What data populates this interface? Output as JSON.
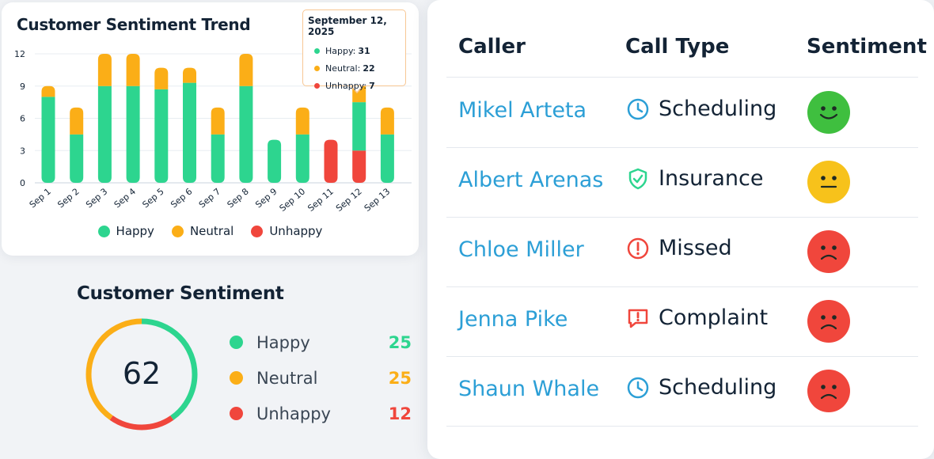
{
  "chart_data": [
    {
      "type": "bar",
      "stacked": true,
      "title": "Customer Sentiment Trend",
      "categories": [
        "Sep 1",
        "Sep 2",
        "Sep 3",
        "Sep 4",
        "Sep 5",
        "Sep 6",
        "Sep 7",
        "Sep 8",
        "Sep 9",
        "Sep 10",
        "Sep 11",
        "Sep 12",
        "Sep 13"
      ],
      "series": [
        {
          "name": "Unhappy",
          "color": "#f0463c",
          "values": [
            0,
            0,
            0,
            0,
            0,
            0,
            0,
            0,
            0,
            0,
            4,
            3,
            0
          ]
        },
        {
          "name": "Happy",
          "color": "#2dd58f",
          "values": [
            8,
            4.5,
            9,
            9,
            8.7,
            9.3,
            4.5,
            9,
            4,
            4.5,
            0,
            4.5,
            4.5
          ]
        },
        {
          "name": "Neutral",
          "color": "#fbae17",
          "values": [
            1,
            2.5,
            3,
            3,
            2,
            1.4,
            2.5,
            3,
            0,
            2.5,
            0,
            4.5,
            2.5
          ]
        }
      ],
      "yticks": [
        0,
        3,
        6,
        9,
        12
      ],
      "ylim": [
        0,
        12
      ],
      "grid": true,
      "legend": "bottom",
      "tooltip": {
        "date": "September 12, 2025",
        "rows": [
          {
            "label": "Happy:",
            "value": "31",
            "color": "#2dd58f"
          },
          {
            "label": "Neutral:",
            "value": "22",
            "color": "#fbae17"
          },
          {
            "label": "Unhappy:",
            "value": "7",
            "color": "#f0463c"
          }
        ]
      }
    },
    {
      "type": "pie",
      "title": "Customer Sentiment",
      "total": "62",
      "labels": [
        "Happy",
        "Neutral",
        "Unhappy"
      ],
      "values": [
        25,
        25,
        12
      ],
      "colors": [
        "#2dd58f",
        "#fbae17",
        "#f0463c"
      ]
    }
  ],
  "legend_items": [
    {
      "label": "Happy",
      "color": "#2dd58f"
    },
    {
      "label": "Neutral",
      "color": "#fbae17"
    },
    {
      "label": "Unhappy",
      "color": "#f0463c"
    }
  ],
  "table": {
    "headers": [
      "Caller",
      "Call Type",
      "Sentiment"
    ],
    "rows": [
      {
        "caller": "Mikel Arteta",
        "type": "Scheduling",
        "icon": "clock-icon",
        "sentiment": "happy"
      },
      {
        "caller": "Albert Arenas",
        "type": "Insurance",
        "icon": "shield-check-icon",
        "sentiment": "neutral"
      },
      {
        "caller": "Chloe Miller",
        "type": "Missed",
        "icon": "alert-circle-icon",
        "sentiment": "unhappy"
      },
      {
        "caller": "Jenna Pike",
        "type": "Complaint",
        "icon": "message-alert-icon",
        "sentiment": "unhappy"
      },
      {
        "caller": "Shaun Whale",
        "type": "Scheduling",
        "icon": "clock-icon",
        "sentiment": "unhappy"
      }
    ]
  },
  "colors": {
    "happy": "#2dd58f",
    "neutral": "#fbae17",
    "unhappy": "#f0463c",
    "link": "#2c9fd6",
    "face_happy": "#3fbf3f",
    "face_neutral": "#f7c21b",
    "face_unhappy": "#f0463c"
  }
}
